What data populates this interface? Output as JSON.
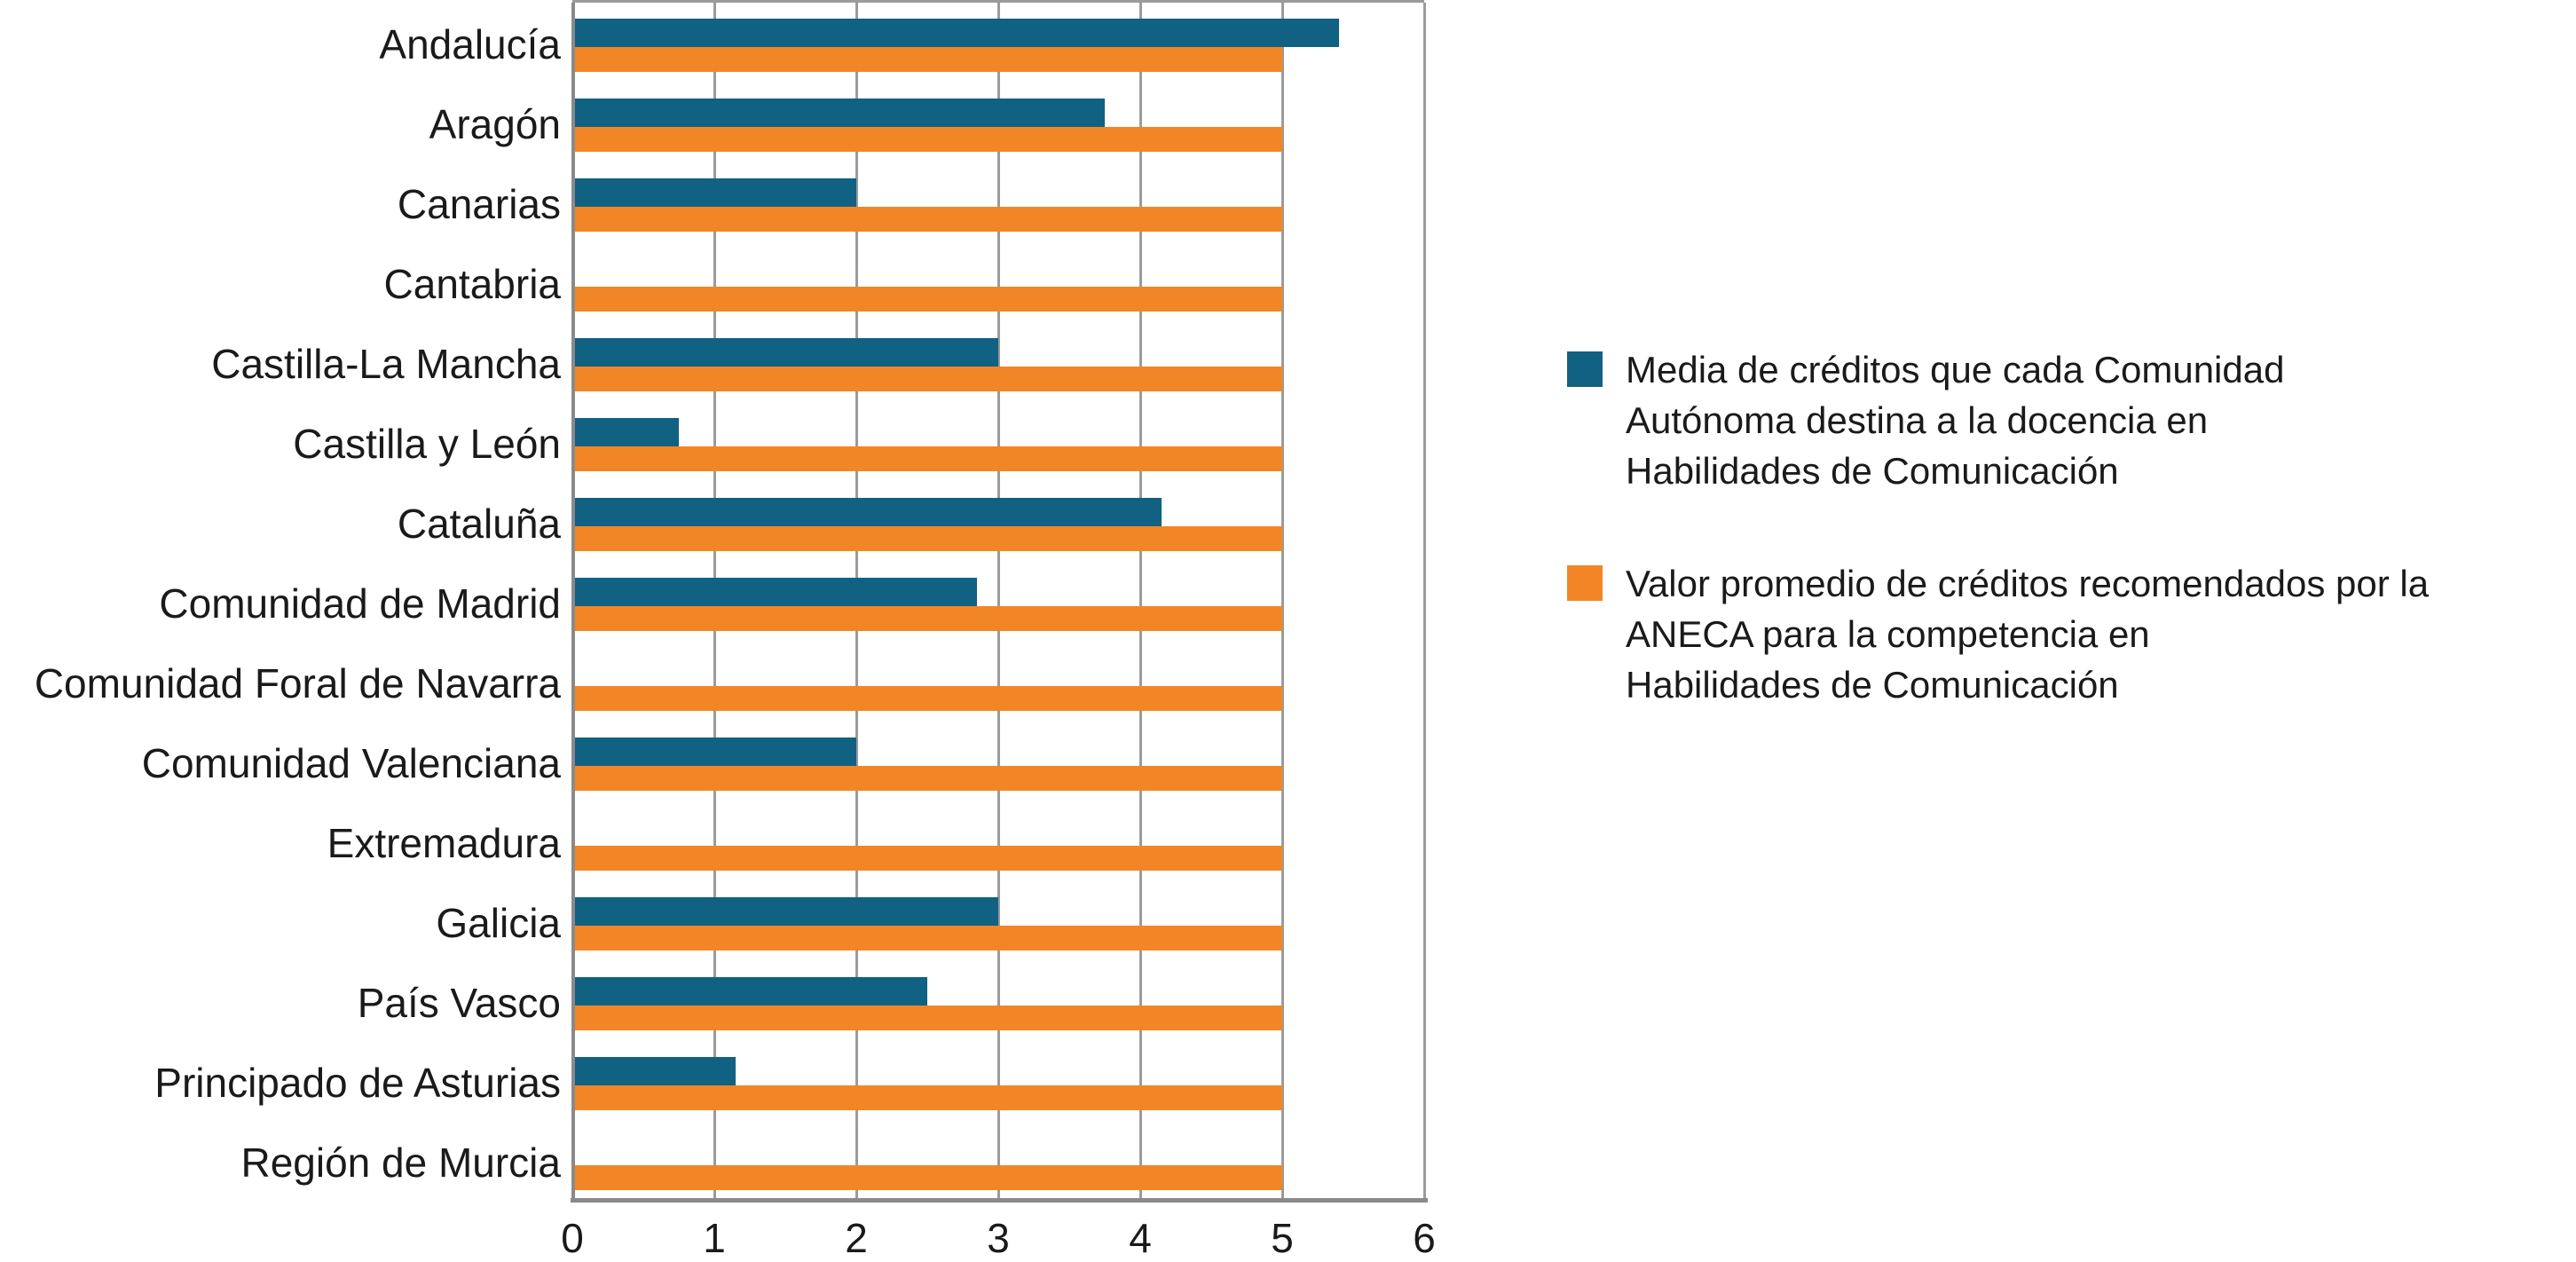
{
  "chart_data": {
    "type": "bar",
    "orientation": "horizontal",
    "title": "",
    "xlabel": "",
    "ylabel": "",
    "categories": [
      "Andalucía",
      "Aragón",
      "Canarias",
      "Cantabria",
      "Castilla-La Mancha",
      "Castilla y León",
      "Cataluña",
      "Comunidad de Madrid",
      "Comunidad Foral de Navarra",
      "Comunidad Valenciana",
      "Extremadura",
      "Galicia",
      "País Vasco",
      "Principado de Asturias",
      "Región de Murcia"
    ],
    "series": [
      {
        "name": "Media de créditos que cada Comunidad Autónoma destina a la docencia en Habilidades de Comunicación",
        "color": "#116183",
        "values": [
          5.4,
          3.75,
          2,
          0,
          3,
          0.75,
          4.15,
          2.85,
          0,
          2,
          0,
          3,
          2.5,
          1.15,
          0
        ]
      },
      {
        "name": "Valor promedio de créditos recomendados por la ANECA para la competencia en Habilidades de Comunicación",
        "color": "#f28626",
        "values": [
          5,
          5,
          5,
          5,
          5,
          5,
          5,
          5,
          5,
          5,
          5,
          5,
          5,
          5,
          5
        ]
      }
    ],
    "x_axis": {
      "min": 0,
      "max": 6,
      "ticks": [
        "0",
        "1",
        "2",
        "3",
        "4",
        "5",
        "6"
      ]
    },
    "grid": true,
    "legend_position": "right"
  },
  "legend": {
    "items": [
      {
        "color": "#116183",
        "lines": [
          "Media de créditos que cada Comunidad",
          "Autónoma destina a la docencia en",
          "Habilidades de Comunicación"
        ]
      },
      {
        "color": "#f28626",
        "lines": [
          "Valor promedio de créditos recomendados por la",
          "ANECA para la competencia en",
          "Habilidades de Comunicación"
        ]
      }
    ]
  },
  "colors": {
    "series_blue": "#116183",
    "series_orange": "#f28626",
    "gridline": "#9b9b9b",
    "axis": "#8a8a8a",
    "text": "#1a1a1a"
  }
}
